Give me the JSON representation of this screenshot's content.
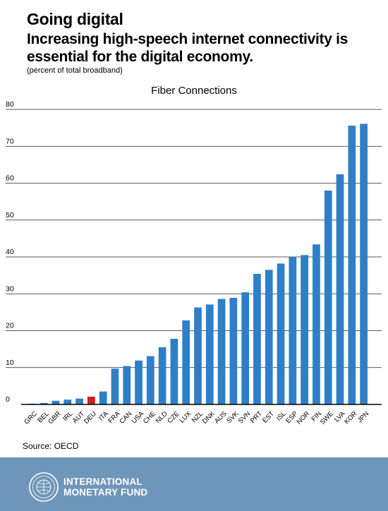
{
  "header": {
    "title": "Going digital",
    "subtitle": "Increasing high-speech internet connectivity is essential for the digital economy.",
    "note": "(percent of total broadband)"
  },
  "source": "Source: OECD",
  "footer": {
    "org_line1": "INTERNATIONAL",
    "org_line2": "MONETARY FUND"
  },
  "colors": {
    "bar": "#2f7fc8",
    "highlight": "#cc1f1f",
    "footer_bg": "#6f96b8"
  },
  "chart_data": {
    "type": "bar",
    "title": "Fiber Connections",
    "categories": [
      "GRC",
      "BEL",
      "GBR",
      "IRL",
      "AUT",
      "DEU",
      "ITA",
      "FRA",
      "CAN",
      "USA",
      "CHE",
      "NLD",
      "CZE",
      "LUX",
      "NZL",
      "DNK",
      "AUS",
      "SVK",
      "SVN",
      "PRT",
      "EST",
      "ISL",
      "ESP",
      "NOR",
      "FIN",
      "SWE",
      "LVA",
      "KOR",
      "JPN"
    ],
    "values": [
      0.2,
      0.4,
      1.0,
      1.3,
      1.6,
      2.1,
      3.5,
      9.7,
      10.4,
      11.9,
      13.1,
      15.5,
      17.8,
      22.8,
      26.3,
      27.1,
      28.6,
      28.9,
      30.4,
      35.4,
      36.5,
      38.2,
      39.9,
      40.5,
      43.4,
      58.0,
      62.4,
      75.6,
      76.1
    ],
    "highlight": [
      "DEU"
    ],
    "ylim": [
      0,
      80
    ],
    "yticks": [
      0,
      10,
      20,
      30,
      40,
      50,
      60,
      70,
      80
    ],
    "grid": true,
    "xlabel": "",
    "ylabel": ""
  }
}
